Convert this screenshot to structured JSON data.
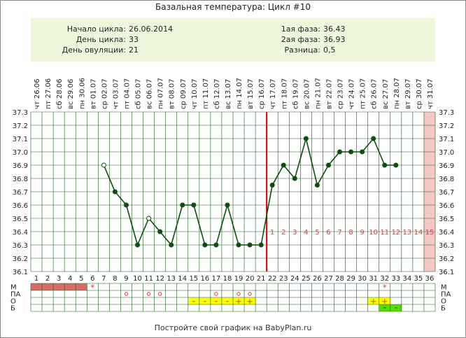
{
  "title": "Базальная температура: Цикл #10",
  "info": {
    "left": [
      {
        "label": "Начало цикла:",
        "value": "26.06.2014"
      },
      {
        "label": "День цикла:",
        "value": "33"
      },
      {
        "label": "День овуляции:",
        "value": "21"
      }
    ],
    "right": [
      {
        "label": "1ая фаза:",
        "value": "36.43"
      },
      {
        "label": "2ая фаза:",
        "value": "36.93"
      },
      {
        "label": "Разница:",
        "value": "0,5"
      }
    ]
  },
  "footer": "Постройте свой график на BabyPlan.ru",
  "chart_data": {
    "type": "line",
    "dates": [
      "чт 26.06",
      "пт 27.06",
      "сб 28.06",
      "вс 29.06",
      "пн 30.06",
      "вт 01.07",
      "ср 02.07",
      "чт 03.07",
      "пт 04.07",
      "сб 05.07",
      "вс 06.07",
      "пн 07.07",
      "вт 08.07",
      "ср 09.07",
      "чт 10.07",
      "пт 11.07",
      "сб 12.07",
      "вс 13.07",
      "пн 14.07",
      "вт 15.07",
      "ср 16.07",
      "чт 17.07",
      "пт 18.07",
      "сб 19.07",
      "вс 20.07",
      "пн 21.07",
      "вт 22.07",
      "ср 23.07",
      "чт 24.07",
      "пт 25.07",
      "сб 26.07",
      "вс 27.07",
      "пн 28.07",
      "вт 29.07",
      "ср 30.07",
      "чт 31.07"
    ],
    "days": [
      1,
      2,
      3,
      4,
      5,
      6,
      7,
      8,
      9,
      10,
      11,
      12,
      13,
      14,
      15,
      16,
      17,
      18,
      19,
      20,
      21,
      22,
      23,
      24,
      25,
      26,
      27,
      28,
      29,
      30,
      31,
      32,
      33,
      34,
      35,
      36
    ],
    "x": [
      7,
      8,
      9,
      10,
      11,
      12,
      13,
      14,
      15,
      16,
      17,
      18,
      19,
      20,
      21,
      22,
      23,
      24,
      25,
      26,
      27,
      28,
      29,
      30,
      31,
      32,
      33
    ],
    "y": [
      36.9,
      36.7,
      36.6,
      36.3,
      36.5,
      36.4,
      36.3,
      36.6,
      36.6,
      36.3,
      36.3,
      36.6,
      36.3,
      36.3,
      36.3,
      36.75,
      36.9,
      36.8,
      37.1,
      36.75,
      36.9,
      37.0,
      37.0,
      37.0,
      37.1,
      36.9,
      36.9
    ],
    "open_points": [
      7,
      11
    ],
    "ylim": [
      36.1,
      37.3
    ],
    "yticks": [
      "36.1",
      "36.2",
      "36.3",
      "36.4",
      "36.5",
      "36.6",
      "36.7",
      "36.8",
      "36.9",
      "37.0",
      "37.1",
      "37.2",
      "37.3"
    ],
    "ovulation_day": 21,
    "luteal_labels": [
      "1",
      "2",
      "3",
      "4",
      "5",
      "6",
      "7",
      "8",
      "9",
      "10",
      "11",
      "12",
      "13",
      "14",
      "15"
    ],
    "highlight_day": 36,
    "moon_day": 29,
    "row_labels": [
      "М",
      "ПА",
      "О",
      "Б"
    ],
    "menstruation_days": [
      1,
      2,
      3,
      4,
      5
    ],
    "m_star_days": [
      6,
      32
    ],
    "pa_days": [
      9,
      11,
      12,
      17,
      19,
      20
    ],
    "o_marks": [
      {
        "day": 15,
        "sym": "-"
      },
      {
        "day": 16,
        "sym": "-"
      },
      {
        "day": 17,
        "sym": "-"
      },
      {
        "day": 18,
        "sym": "-"
      },
      {
        "day": 19,
        "sym": "+"
      },
      {
        "day": 20,
        "sym": "+"
      },
      {
        "day": 31,
        "sym": "+"
      },
      {
        "day": 32,
        "sym": "+"
      }
    ],
    "b_marks": [
      {
        "day": 32,
        "sym": "-"
      },
      {
        "day": 33,
        "sym": "-"
      }
    ],
    "colors": {
      "line": "#0d4f0d",
      "ovulation": "#cc0000",
      "luteal": "#b05050",
      "highlight": "#f7c6c6",
      "menstruation": "#d96b6b",
      "yellow": "#ffff00",
      "green": "#55dd00"
    }
  }
}
